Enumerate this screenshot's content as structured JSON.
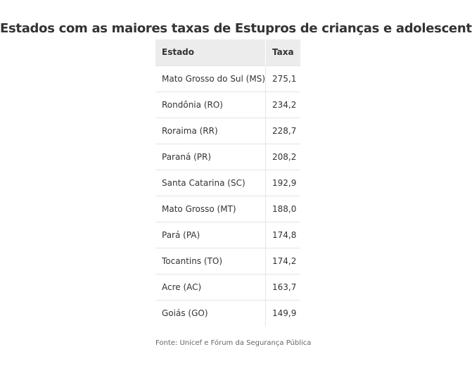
{
  "chart_data": {
    "type": "table",
    "title": "Estados com as maiores taxas de Estupros de crianças e adolescentes",
    "columns": [
      "Estado",
      "Taxa"
    ],
    "rows": [
      {
        "state": "Mato Grosso do Sul (MS)",
        "rate": "275,1"
      },
      {
        "state": "Rondônia (RO)",
        "rate": "234,2"
      },
      {
        "state": "Roraima (RR)",
        "rate": "228,7"
      },
      {
        "state": "Paraná (PR)",
        "rate": "208,2"
      },
      {
        "state": "Santa Catarina (SC)",
        "rate": "192,9"
      },
      {
        "state": "Mato Grosso (MT)",
        "rate": "188,0"
      },
      {
        "state": "Pará (PA)",
        "rate": "174,8"
      },
      {
        "state": "Tocantins (TO)",
        "rate": "174,2"
      },
      {
        "state": "Acre (AC)",
        "rate": "163,7"
      },
      {
        "state": "Goiás (GO)",
        "rate": "149,9"
      }
    ],
    "source": "Fonte: Unicef e Fórum da Segurança Pública"
  },
  "colors": {
    "header_background": "#ececec",
    "text": "#333333",
    "row_border": "#e4e4e4",
    "source_text": "#666666"
  }
}
